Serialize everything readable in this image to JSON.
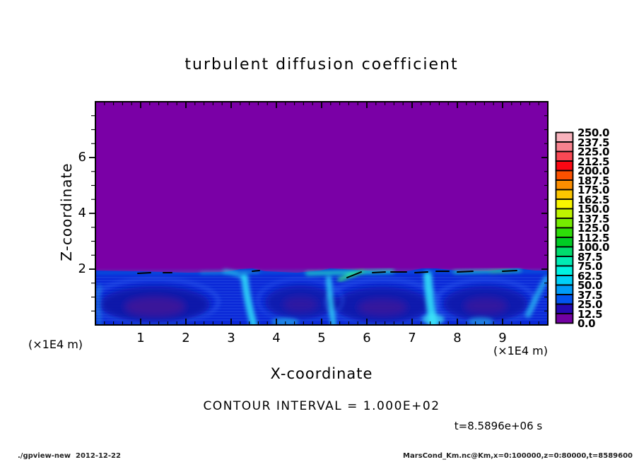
{
  "title": "turbulent diffusion coefficient",
  "axes": {
    "x": {
      "label": "X-coordinate",
      "units": "(×1E4 m)",
      "min": 0,
      "max": 10,
      "major_ticks": [
        1,
        2,
        3,
        4,
        5,
        6,
        7,
        8,
        9
      ],
      "minor_step": 0.2
    },
    "y": {
      "label": "Z-coordinate",
      "units": "(×1E4 m)",
      "min": 0,
      "max": 8,
      "major_ticks": [
        2,
        4,
        6
      ],
      "minor_step": 0.5
    }
  },
  "colorbar": {
    "labels": [
      "250.0",
      "237.5",
      "225.0",
      "212.5",
      "200.0",
      "187.5",
      "175.0",
      "162.5",
      "150.0",
      "137.5",
      "125.0",
      "112.5",
      "100.0",
      "87.5",
      "75.0",
      "62.5",
      "50.0",
      "37.5",
      "25.0",
      "12.5",
      "0.0"
    ],
    "colors": [
      "#f8b2bc",
      "#f8828e",
      "#f84854",
      "#fb0713",
      "#fc5100",
      "#fc8e00",
      "#fcc600",
      "#f8f600",
      "#bef400",
      "#76ec00",
      "#2edc08",
      "#00cc24",
      "#00dc6e",
      "#00ecb4",
      "#00f2e2",
      "#00d0f8",
      "#009cf8",
      "#0254f0",
      "#2609b2",
      "#7201a2"
    ]
  },
  "annotations": {
    "contour_interval": "CONTOUR INTERVAL = 1.000E+02",
    "time": "t=8.5896e+06 s"
  },
  "footer": {
    "left": "./gpview-new  2012-12-22",
    "right": "MarsCond_Km.nc@Km,x=0:100000,z=0:80000,t=8589600"
  },
  "chart_data": {
    "type": "heatmap",
    "title": "turbulent diffusion coefficient",
    "xlabel": "X-coordinate (×1E4 m)",
    "ylabel": "Z-coordinate (×1E4 m)",
    "xlim": [
      0,
      10
    ],
    "ylim": [
      0,
      8
    ],
    "levels": [
      0.0,
      12.5,
      25.0,
      37.5,
      50.0,
      62.5,
      75.0,
      87.5,
      100.0,
      112.5,
      125.0,
      137.5,
      150.0,
      162.5,
      175.0,
      187.5,
      200.0,
      212.5,
      225.0,
      237.5,
      250.0
    ],
    "colorbar_range": [
      0,
      250
    ],
    "colorbar_step": 12.5,
    "contour_interval": 100,
    "time_seconds": 8589600,
    "legend_position": "right",
    "grid": false,
    "field_description": "Diffusion coefficient is ~0 (purple) everywhere above z ≈ 2×1E4 m. Below z ≈ 2×1E4 m lies a convective mixed layer with values ~12.5–100 (dark blue vortex cores, cyan upwelling plumes). Narrow bright cyan/green bands with closed 100-level contour segments hug the mixed-layer top, strongest for x ≈ 4.8–6.5 and 8–9.4 ×1E4 m.",
    "mixed_layer_top_z": 2,
    "vortex_centers_x": [
      1.3,
      4.5,
      6.3,
      8.6
    ],
    "plume_positions_x": [
      3.4,
      5.2,
      7.5,
      9.7
    ]
  }
}
